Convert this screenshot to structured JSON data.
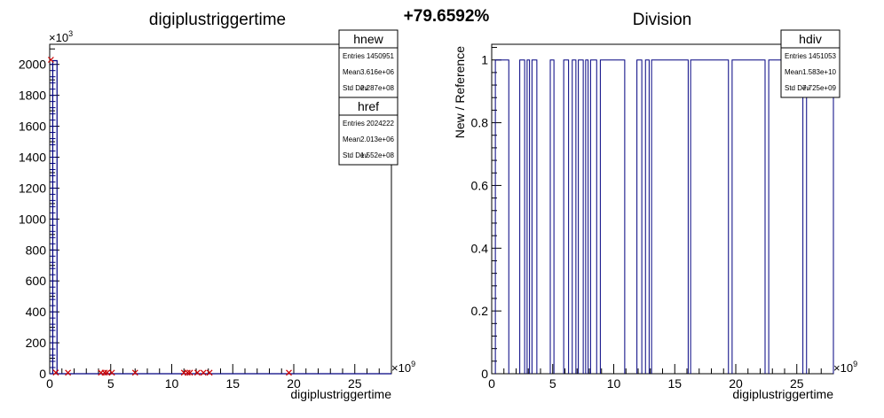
{
  "header": {
    "percent": "+79.6592%"
  },
  "chart_data": [
    {
      "type": "line",
      "title": "digiplustriggertime",
      "xlabel": "digiplustriggertime",
      "ylabel": "",
      "x_multiplier_label": "×10",
      "x_multiplier_exp": "9",
      "y_multiplier_label": "×10",
      "y_multiplier_exp": "3",
      "xlim": [
        0,
        28
      ],
      "ylim": [
        0,
        2130
      ],
      "x_ticks": [
        0,
        5,
        10,
        15,
        20,
        25
      ],
      "y_ticks": [
        0,
        200,
        400,
        600,
        800,
        1000,
        1200,
        1400,
        1600,
        1800,
        2000
      ],
      "series": [
        {
          "name": "hnew",
          "color": "#000080",
          "style": "step",
          "x": [
            0,
            0.25,
            0.6,
            28
          ],
          "values": [
            0,
            2024,
            0,
            0
          ]
        },
        {
          "name": "href",
          "color": "#cc0000",
          "style": "markers",
          "x": [
            0.1,
            0.5,
            1.5,
            4.2,
            4.5,
            4.7,
            5.1,
            7.0,
            11.0,
            11.3,
            11.5,
            12.1,
            12.6,
            13.1,
            19.6
          ],
          "values": [
            2024,
            2,
            1,
            1,
            1,
            1,
            1,
            1,
            1,
            1,
            1,
            1,
            1,
            1,
            1
          ]
        }
      ],
      "stats": [
        {
          "name": "hnew",
          "rows": [
            {
              "key": "Entries",
              "value": "1450951"
            },
            {
              "key": "Mean",
              "value": "3.616e+06"
            },
            {
              "key": "Std Dev",
              "value": "2.287e+08"
            }
          ]
        },
        {
          "name": "href",
          "rows": [
            {
              "key": "Entries",
              "value": "2024222"
            },
            {
              "key": "Mean",
              "value": "2.013e+06"
            },
            {
              "key": "Std Dev",
              "value": "1.552e+08"
            }
          ]
        }
      ]
    },
    {
      "type": "line",
      "title": "Division",
      "xlabel": "digiplustriggertime",
      "ylabel": "New / Reference",
      "x_multiplier_label": "×10",
      "x_multiplier_exp": "9",
      "xlim": [
        0,
        28
      ],
      "ylim": [
        0,
        1.05
      ],
      "x_ticks": [
        0,
        5,
        10,
        15,
        20,
        25
      ],
      "y_ticks": [
        0,
        0.2,
        0.4,
        0.6,
        0.8,
        1
      ],
      "y_tick_labels": [
        "0",
        "0.2",
        "0.4",
        "0.6",
        "0.8",
        "1"
      ],
      "series": [
        {
          "name": "hdiv",
          "color": "#000080",
          "style": "step",
          "segments": [
            [
              0.3,
              1.4
            ],
            [
              2.3,
              2.7
            ],
            [
              2.9,
              3.1
            ],
            [
              3.3,
              3.7
            ],
            [
              4.8,
              5.1
            ],
            [
              5.9,
              6.3
            ],
            [
              6.6,
              6.9
            ],
            [
              7.1,
              7.5
            ],
            [
              7.7,
              7.9
            ],
            [
              8.1,
              8.6
            ],
            [
              8.9,
              10.9
            ],
            [
              11.9,
              12.3
            ],
            [
              12.6,
              12.9
            ],
            [
              13.1,
              16.1
            ],
            [
              16.3,
              19.4
            ],
            [
              19.7,
              22.4
            ],
            [
              22.7,
              25.5
            ],
            [
              25.8,
              28
            ]
          ]
        }
      ],
      "stats": [
        {
          "name": "hdiv",
          "rows": [
            {
              "key": "Entries",
              "value": "1451053"
            },
            {
              "key": "Mean",
              "value": "1.583e+10"
            },
            {
              "key": "Std Dev",
              "value": "7.725e+09"
            }
          ]
        }
      ]
    }
  ]
}
